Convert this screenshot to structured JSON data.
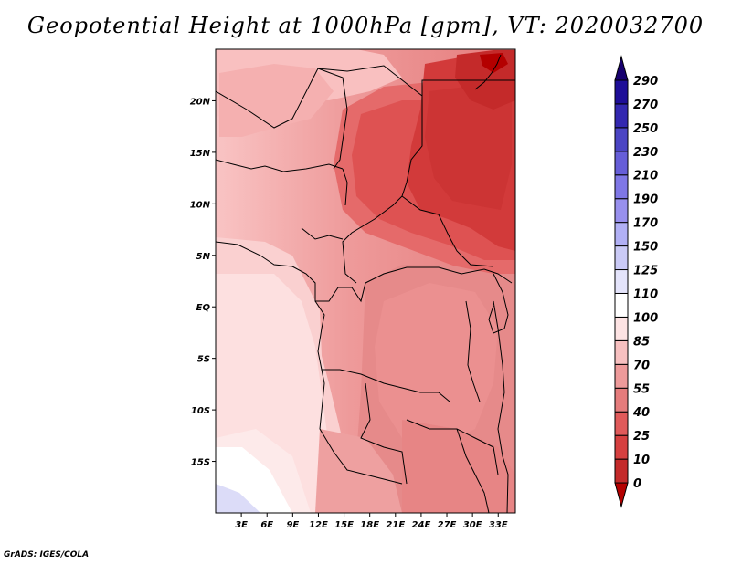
{
  "title": "Geopotential Height at 1000hPa [gpm], VT: 2020032700",
  "credit": "GrADS: IGES/COLA",
  "chart_data": {
    "type": "heatmap",
    "variable": "Geopotential Height",
    "level": "1000hPa",
    "units": "gpm",
    "valid_time": "2020032700",
    "lon_range": [
      0,
      35
    ],
    "lat_range": [
      -20,
      25
    ],
    "x_ticks": [
      "3E",
      "6E",
      "9E",
      "12E",
      "15E",
      "18E",
      "21E",
      "24E",
      "27E",
      "30E",
      "33E"
    ],
    "y_ticks": [
      "20N",
      "15N",
      "10N",
      "5N",
      "EQ",
      "5S",
      "10S",
      "15S"
    ],
    "colorbar": {
      "levels": [
        "0",
        "10",
        "25",
        "40",
        "55",
        "70",
        "85",
        "100",
        "110",
        "125",
        "150",
        "170",
        "190",
        "210",
        "230",
        "250",
        "270",
        "290"
      ],
      "colors": [
        "#b40000",
        "#c42a2a",
        "#d64040",
        "#e05a5a",
        "#e57c7c",
        "#ee9a9a",
        "#f7c0c0",
        "#fde3e3",
        "#ffffff",
        "#e4e4fb",
        "#cacaf6",
        "#b1b0f5",
        "#9890ee",
        "#7f77e6",
        "#665ed8",
        "#4b45c4",
        "#3328b0",
        "#1e0e98",
        "#17006f"
      ]
    }
  }
}
